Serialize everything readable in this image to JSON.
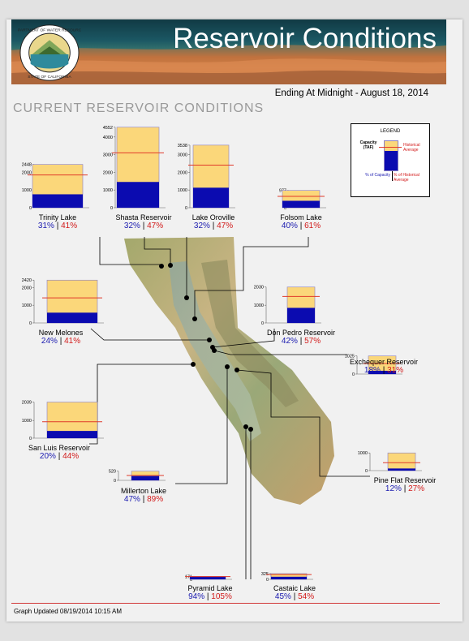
{
  "header": {
    "title": "Reservoir Conditions",
    "ending": "Ending At Midnight - August 18, 2014",
    "section_title": "CURRENT RESERVOIR CONDITIONS"
  },
  "legend": {
    "title": "LEGEND",
    "capacity": "Capacity\n(TAF)",
    "historical": "Historical\nAverage",
    "pct_capacity": "% of Capacity",
    "pct_historical": "% of Historical\nAverage"
  },
  "colors": {
    "capacity_fill": "#fbd77a",
    "storage_fill": "#0b0bb0",
    "historical_line": "#e03a2a",
    "pct_capacity_text": "#1b1bb0",
    "pct_historical_text": "#d21a1a"
  },
  "reservoirs": [
    {
      "name": "Trinity Lake",
      "capacity": 2448,
      "ticks": [
        0,
        1000,
        2000,
        2448
      ],
      "pct_capacity": 31,
      "pct_historical": 41,
      "pct_capacity_label": "31%",
      "pct_historical_label": "41%"
    },
    {
      "name": "Shasta Reservoir",
      "capacity": 4552,
      "ticks": [
        0,
        1000,
        2000,
        3000,
        4000,
        4552
      ],
      "pct_capacity": 32,
      "pct_historical": 47,
      "pct_capacity_label": "32%",
      "pct_historical_label": "47%"
    },
    {
      "name": "Lake Oroville",
      "capacity": 3538,
      "ticks": [
        0,
        1000,
        2000,
        3000,
        3538
      ],
      "pct_capacity": 32,
      "pct_historical": 47,
      "pct_capacity_label": "32%",
      "pct_historical_label": "47%"
    },
    {
      "name": "Folsom Lake",
      "capacity": 977,
      "ticks": [
        0,
        977
      ],
      "pct_capacity": 40,
      "pct_historical": 61,
      "pct_capacity_label": "40%",
      "pct_historical_label": "61%"
    },
    {
      "name": "New Melones",
      "capacity": 2420,
      "ticks": [
        0,
        1000,
        2000,
        2420
      ],
      "pct_capacity": 24,
      "pct_historical": 41,
      "pct_capacity_label": "24%",
      "pct_historical_label": "41%"
    },
    {
      "name": "Don Pedro Reservoir",
      "capacity": 2030,
      "ticks": [
        0,
        1000,
        2030
      ],
      "pct_capacity": 42,
      "pct_historical": 57,
      "pct_capacity_label": "42%",
      "pct_historical_label": "57%"
    },
    {
      "name": "Exchequer Reservoir",
      "capacity": 1025,
      "ticks": [
        0,
        1025
      ],
      "pct_capacity": 18,
      "pct_historical": 31,
      "pct_capacity_label": "18%",
      "pct_historical_label": "31%"
    },
    {
      "name": "San Luis Reservoir",
      "capacity": 2039,
      "ticks": [
        0,
        1000,
        2039
      ],
      "pct_capacity": 20,
      "pct_historical": 44,
      "pct_capacity_label": "20%",
      "pct_historical_label": "44%"
    },
    {
      "name": "Millerton Lake",
      "capacity": 520,
      "ticks": [
        0,
        520
      ],
      "pct_capacity": 47,
      "pct_historical": 89,
      "pct_capacity_label": "47%",
      "pct_historical_label": "89%"
    },
    {
      "name": "Pine Flat Reservoir",
      "capacity": 1000,
      "ticks": [
        0,
        1000
      ],
      "pct_capacity": 12,
      "pct_historical": 27,
      "pct_capacity_label": "12%",
      "pct_historical_label": "27%"
    },
    {
      "name": "Pyramid Lake",
      "capacity": 171,
      "ticks": [
        0,
        171
      ],
      "pct_capacity": 94,
      "pct_historical": 105,
      "pct_capacity_label": "94%",
      "pct_historical_label": "105%"
    },
    {
      "name": "Castaic Lake",
      "capacity": 325,
      "ticks": [
        0,
        325
      ],
      "pct_capacity": 45,
      "pct_historical": 54,
      "pct_capacity_label": "45%",
      "pct_historical_label": "54%"
    }
  ],
  "footer": {
    "updated": "Graph Updated 08/19/2014 10:15 AM"
  }
}
